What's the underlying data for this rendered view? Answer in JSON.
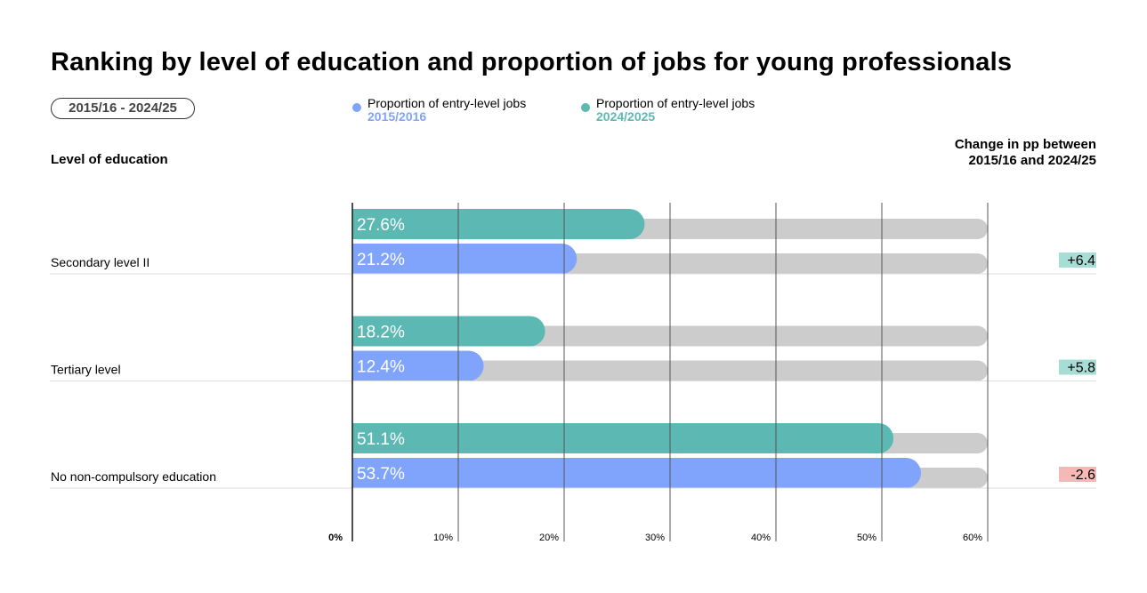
{
  "chart_data": {
    "type": "bar",
    "title": "Ranking by level of education and proportion of jobs for young professionals",
    "period_badge": "2015/16 - 2024/25",
    "category_header": "Level of education",
    "change_header": [
      "Change in pp between",
      "2015/16 and 2024/25"
    ],
    "categories": [
      "Secondary level II",
      "Tertiary level",
      "No non-compulsory education"
    ],
    "series": [
      {
        "name": "Proportion of entry-level jobs",
        "year": "2024/2025",
        "color": "#5cb8b2",
        "values": [
          27.6,
          18.2,
          51.1
        ],
        "labels": [
          "27.6%",
          "18.2%",
          "51.1%"
        ]
      },
      {
        "name": "Proportion of entry-level jobs",
        "year": "2015/2016",
        "color": "#80a4fc",
        "values": [
          21.2,
          12.4,
          53.7
        ],
        "labels": [
          "21.2%",
          "12.4%",
          "53.7%"
        ]
      }
    ],
    "legend_order": [
      1,
      0
    ],
    "changes": [
      "+6.4",
      "+5.8",
      "-2.6"
    ],
    "change_colors": {
      "positive": "#a8ddd6",
      "negative": "#f4b9b6"
    },
    "track_color": "#cccccc",
    "xlim": [
      0,
      60
    ],
    "xticks": [
      "0%",
      "10%",
      "20%",
      "30%",
      "40%",
      "50%",
      "60%"
    ],
    "grid": true
  }
}
